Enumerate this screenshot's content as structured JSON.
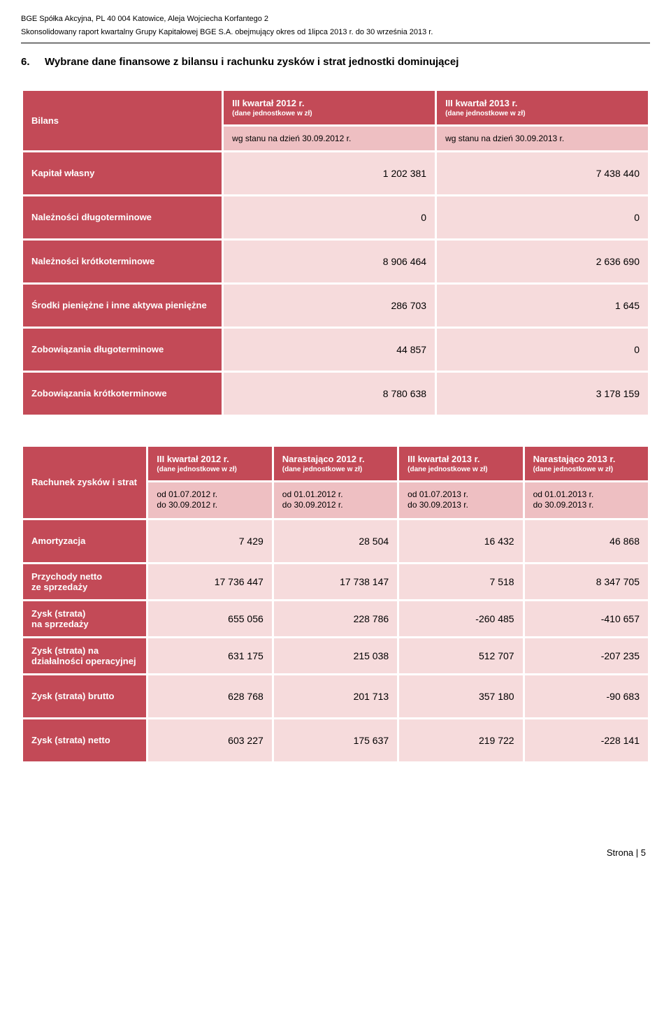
{
  "header": {
    "line1": "BGE Spółka Akcyjna, PL 40 004 Katowice, Aleja Wojciecha Korfantego 2",
    "line2": "Skonsolidowany raport kwartalny Grupy Kapitałowej BGE S.A. obejmujący okres od 1lipca 2013 r. do 30 września 2013 r."
  },
  "section": {
    "number": "6.",
    "title": "Wybrane dane finansowe z bilansu i rachunku zysków i strat jednostki dominującej"
  },
  "bilans": {
    "corner": "Bilans",
    "col1": {
      "title": "III kwartał 2012 r.",
      "sub": "(dane jednostkowe w zł)",
      "sub2": "wg stanu na dzień 30.09.2012 r."
    },
    "col2": {
      "title": "III kwartał 2013 r.",
      "sub": "(dane jednostkowe w zł)",
      "sub2": "wg stanu na dzień 30.09.2013 r."
    },
    "rows": [
      {
        "label": "Kapitał własny",
        "v1": "1 202 381",
        "v2": "7 438 440"
      },
      {
        "label": "Należności długoterminowe",
        "v1": "0",
        "v2": "0"
      },
      {
        "label": "Należności krótkoterminowe",
        "v1": "8 906 464",
        "v2": "2 636 690"
      },
      {
        "label": "Środki pieniężne i inne aktywa pieniężne",
        "v1": "286 703",
        "v2": "1 645"
      },
      {
        "label": "Zobowiązania długoterminowe",
        "v1": "44 857",
        "v2": "0"
      },
      {
        "label": "Zobowiązania krótkoterminowe",
        "v1": "8 780 638",
        "v2": "3 178 159"
      }
    ]
  },
  "rachunek": {
    "corner": "Rachunek zysków i strat",
    "cols": [
      {
        "title": "III kwartał 2012 r.",
        "sub": "(dane jednostkowe w zł)",
        "p1": "od 01.07.2012 r.",
        "p2": "do 30.09.2012 r."
      },
      {
        "title": "Narastająco 2012 r.",
        "sub": "(dane jednostkowe w zł)",
        "p1": "od 01.01.2012 r.",
        "p2": "do 30.09.2012 r."
      },
      {
        "title": "III kwartał 2013 r.",
        "sub": "(dane jednostkowe w zł)",
        "p1": "od 01.07.2013 r.",
        "p2": "do 30.09.2013 r."
      },
      {
        "title": "Narastająco 2013 r.",
        "sub": "(dane jednostkowe w zł)",
        "p1": "od 01.01.2013 r.",
        "p2": "do 30.09.2013 r."
      }
    ],
    "rows": [
      {
        "label": "Amortyzacja",
        "v": [
          "7 429",
          "28 504",
          "16 432",
          "46 868"
        ]
      },
      {
        "label": "Przychody netto\nze sprzedaży",
        "v": [
          "17 736 447",
          "17 738 147",
          "7 518",
          "8 347 705"
        ]
      },
      {
        "label": "Zysk (strata)\nna sprzedaży",
        "v": [
          "655 056",
          "228 786",
          "-260 485",
          "-410 657"
        ]
      },
      {
        "label": "Zysk (strata) na\ndziałalności operacyjnej",
        "v": [
          "631 175",
          "215 038",
          "512 707",
          "-207 235"
        ]
      },
      {
        "label": "Zysk (strata) brutto",
        "v": [
          "628 768",
          "201 713",
          "357 180",
          "-90 683"
        ]
      },
      {
        "label": "Zysk (strata) netto",
        "v": [
          "603 227",
          "175 637",
          "219 722",
          "-228 141"
        ]
      }
    ]
  },
  "footer": "Strona | 5"
}
